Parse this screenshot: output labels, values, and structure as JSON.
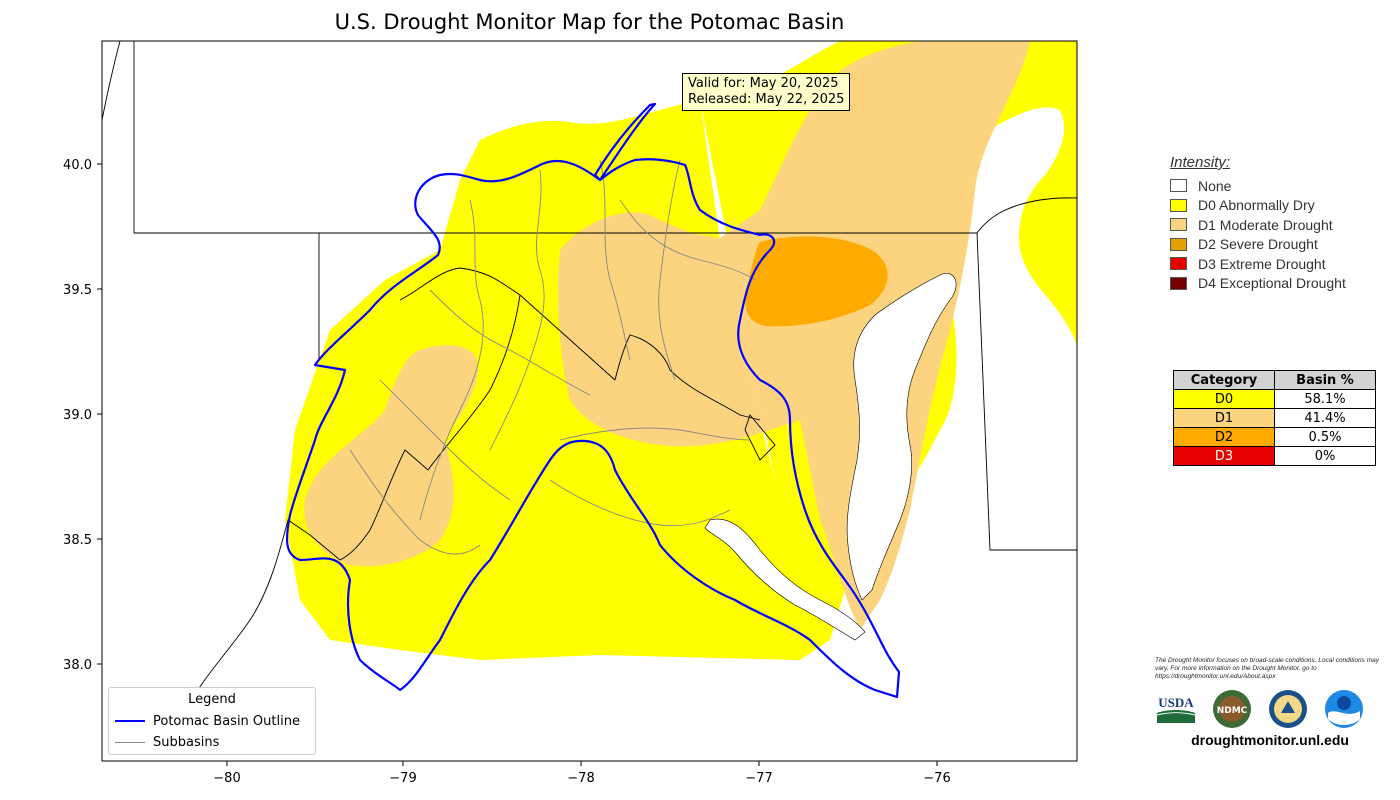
{
  "title": "U.S. Drought Monitor Map for the Potomac Basin",
  "valid_box": {
    "valid_line": "Valid for: May 20, 2025",
    "released_line": "Released: May 22, 2025"
  },
  "axes": {
    "x_ticks": [
      "−80",
      "−79",
      "−78",
      "−77",
      "−76"
    ],
    "y_ticks": [
      "40.0",
      "39.5",
      "39.0",
      "38.5",
      "38.0"
    ]
  },
  "map_legend": {
    "title": "Legend",
    "basin_label": "Potomac Basin Outline",
    "subbasin_label": "Subbasins"
  },
  "intensity": {
    "title": "Intensity:",
    "items": [
      {
        "label": "None",
        "color": "#ffffff"
      },
      {
        "label": "D0 Abnormally Dry",
        "color": "#ffff00"
      },
      {
        "label": "D1 Moderate Drought",
        "color": "#fcd37f"
      },
      {
        "label": "D2 Severe Drought",
        "color": "#e69f00"
      },
      {
        "label": "D3 Extreme Drought",
        "color": "#e60000"
      },
      {
        "label": "D4 Exceptional Drought",
        "color": "#730000"
      }
    ]
  },
  "basin_table": {
    "headers": [
      "Category",
      "Basin %"
    ],
    "rows": [
      {
        "category": "D0",
        "percent": "58.1%",
        "color": "#ffff00",
        "text_color": "#000000"
      },
      {
        "category": "D1",
        "percent": "41.4%",
        "color": "#fcd37f",
        "text_color": "#000000"
      },
      {
        "category": "D2",
        "percent": "0.5%",
        "color": "#ffaa00",
        "text_color": "#000000"
      },
      {
        "category": "D3",
        "percent": "0%",
        "color": "#e60000",
        "text_color": "#ffffff"
      }
    ]
  },
  "credits": {
    "note": "The Drought Monitor focuses on broad-scale conditions. Local conditions may vary. For more information on the Drought Monitor, go to https://droughtmonitor.unl.edu/About.aspx",
    "logos": [
      "USDA",
      "NDMC",
      "DOC",
      "NOAA"
    ],
    "url": "droughtmonitor.unl.edu"
  },
  "colors": {
    "d0": "#ffff00",
    "d1": "#fcd37f",
    "d2": "#ffaa00",
    "basin": "#0000ff",
    "subbasin": "#888888"
  }
}
